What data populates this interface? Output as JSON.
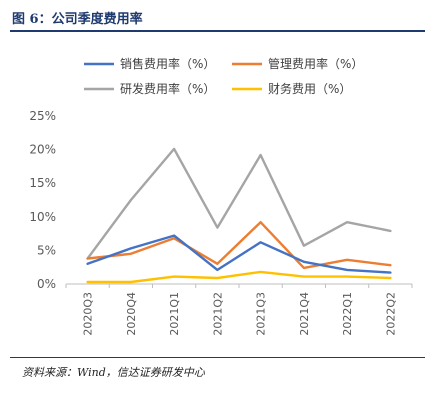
{
  "figure": {
    "title": "图 6：公司季度费用率",
    "source": "资料来源：Wind，信达证券研发中心"
  },
  "chart_data": {
    "type": "line",
    "categories": [
      "2020Q3",
      "2020Q4",
      "2021Q1",
      "2021Q2",
      "2021Q3",
      "2021Q4",
      "2022Q1",
      "2022Q2"
    ],
    "ylim": [
      0,
      25
    ],
    "yticks": [
      0,
      5,
      10,
      15,
      20,
      25
    ],
    "ytick_labels": [
      "0%",
      "5%",
      "10%",
      "15%",
      "20%",
      "25%"
    ],
    "grid": false,
    "legend_position": "top",
    "series": [
      {
        "name": "销售费用率（%）",
        "color": "#4472c4",
        "values": [
          3.0,
          5.3,
          7.2,
          2.1,
          6.2,
          3.3,
          2.1,
          1.7
        ]
      },
      {
        "name": "管理费用率（%）",
        "color": "#ed7d31",
        "values": [
          3.8,
          4.5,
          6.8,
          3.0,
          9.2,
          2.4,
          3.6,
          2.8
        ]
      },
      {
        "name": "研发费用率（%）",
        "color": "#a5a5a5",
        "values": [
          3.8,
          12.5,
          20.1,
          8.4,
          19.2,
          5.7,
          9.2,
          7.9
        ]
      },
      {
        "name": "财务费用（%）",
        "color": "#ffc000",
        "values": [
          0.3,
          0.3,
          1.1,
          0.9,
          1.8,
          1.1,
          1.1,
          0.9
        ]
      }
    ]
  }
}
